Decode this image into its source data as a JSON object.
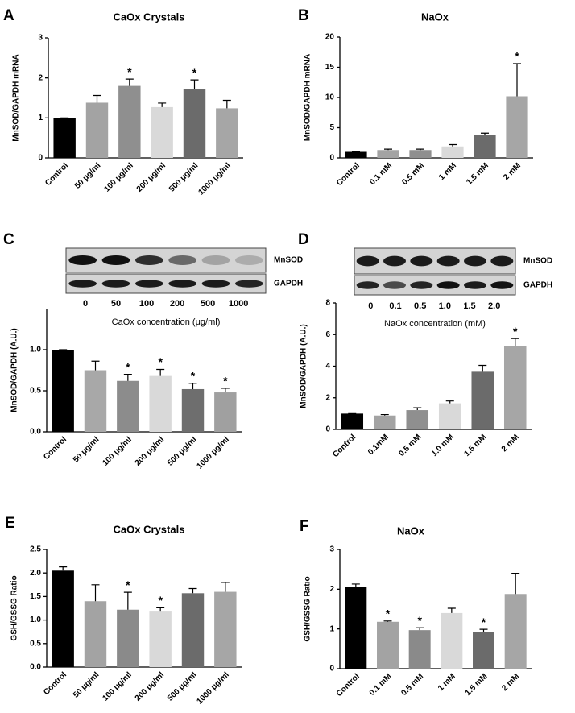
{
  "chart_data": [
    {
      "type": "bar",
      "panel": "A",
      "title": "CaOx Crystals",
      "ylabel": "MnSOD/GAPDH mRNA",
      "categories": [
        "Control",
        "50 μg/ml",
        "100 μg/ml",
        "200 μg/ml",
        "500 μg/ml",
        "1000 μg/ml"
      ],
      "values": [
        1.0,
        1.38,
        1.8,
        1.27,
        1.73,
        1.24
      ],
      "errors": [
        0,
        0.18,
        0.17,
        0.1,
        0.22,
        0.2
      ],
      "colors": [
        "#000000",
        "#a3a3a3",
        "#8f8f8f",
        "#d9d9d9",
        "#6b6b6b",
        "#a6a6a6"
      ],
      "annotations": [
        null,
        null,
        "*",
        null,
        "*",
        null
      ],
      "ylim": [
        0,
        3
      ],
      "yticks": [
        0,
        1,
        2,
        3
      ]
    },
    {
      "type": "bar",
      "panel": "B",
      "title": "NaOx",
      "ylabel": "MnSOD/GAPDH mRNA",
      "categories": [
        "Control",
        "0.1 mM",
        "0.5 mM",
        "1 mM",
        "1.5 mM",
        "2 mM"
      ],
      "values": [
        1.0,
        1.3,
        1.3,
        1.9,
        3.8,
        10.2
      ],
      "errors": [
        0,
        0.15,
        0.15,
        0.3,
        0.3,
        5.4
      ],
      "colors": [
        "#000000",
        "#a3a3a3",
        "#8f8f8f",
        "#d9d9d9",
        "#6b6b6b",
        "#a6a6a6"
      ],
      "annotations": [
        null,
        null,
        null,
        null,
        null,
        "*"
      ],
      "ylim": [
        0,
        20
      ],
      "yticks": [
        0,
        5,
        10,
        15,
        20
      ]
    },
    {
      "type": "bar",
      "panel": "C",
      "ylabel": "MnSOD/GAPDH (A.U.)",
      "blot_labels": [
        "MnSOD",
        "GAPDH"
      ],
      "lanes": [
        "0",
        "50",
        "100",
        "200",
        "500",
        "1000"
      ],
      "xlabel": "CaOx concentration (μg/ml)",
      "categories": [
        "Control",
        "50 μg/ml",
        "100 μg/ml",
        "200 μg/ml",
        "500 μg/ml",
        "1000 μg/ml"
      ],
      "values": [
        1.0,
        0.75,
        0.62,
        0.68,
        0.52,
        0.48
      ],
      "errors": [
        0,
        0.11,
        0.08,
        0.08,
        0.07,
        0.05
      ],
      "colors": [
        "#000000",
        "#a8a8a8",
        "#8c8c8c",
        "#d9d9d9",
        "#6e6e6e",
        "#a0a0a0"
      ],
      "annotations": [
        null,
        null,
        "*",
        "*",
        "*",
        "*"
      ],
      "ylim": [
        0,
        1.5
      ],
      "yticks": [
        {
          "value": 0,
          "label": "0.0"
        },
        0.5,
        {
          "value": 1,
          "label": "1.0"
        }
      ]
    },
    {
      "type": "bar",
      "panel": "D",
      "ylabel": "MnSOD/GAPDH (A.U.)",
      "blot_labels": [
        "MnSOD",
        "GAPDH"
      ],
      "lanes": [
        "0",
        "0.1",
        "0.5",
        "1.0",
        "1.5",
        "2.0"
      ],
      "xlabel": "NaOx concentration (mM)",
      "categories": [
        "Control",
        "0.1mM",
        "0.5 mM",
        "1.0 mM",
        "1.5 mM",
        "2 mM"
      ],
      "values": [
        1.0,
        0.88,
        1.22,
        1.65,
        3.65,
        5.25
      ],
      "errors": [
        0,
        0.06,
        0.15,
        0.15,
        0.4,
        0.5
      ],
      "colors": [
        "#000000",
        "#a3a3a3",
        "#8f8f8f",
        "#d9d9d9",
        "#6b6b6b",
        "#a6a6a6"
      ],
      "annotations": [
        null,
        null,
        null,
        null,
        null,
        "*"
      ],
      "ylim": [
        0,
        8
      ],
      "yticks": [
        0,
        2,
        4,
        6,
        8
      ]
    },
    {
      "type": "bar",
      "panel": "E",
      "title": "CaOx Crystals",
      "ylabel": "GSH/GSSG Ratio",
      "categories": [
        "Control",
        "50 μg/ml",
        "100 μg/ml",
        "200 μg/ml",
        "500 μg/ml",
        "1000 μg/ml"
      ],
      "values": [
        2.05,
        1.4,
        1.22,
        1.18,
        1.57,
        1.6
      ],
      "errors": [
        0.08,
        0.35,
        0.37,
        0.08,
        0.1,
        0.2
      ],
      "colors": [
        "#000000",
        "#a3a3a3",
        "#8a8a8a",
        "#d9d9d9",
        "#6b6b6b",
        "#a6a6a6"
      ],
      "annotations": [
        null,
        null,
        "*",
        "*",
        null,
        null
      ],
      "ylim": [
        0,
        2.5
      ],
      "yticks": [
        {
          "value": 0,
          "label": "0.0"
        },
        0.5,
        {
          "value": 1,
          "label": "1.0"
        },
        1.5,
        {
          "value": 2,
          "label": "2.0"
        },
        2.5
      ]
    },
    {
      "type": "bar",
      "panel": "F",
      "title": "NaOx",
      "ylabel": "GSH/GSSG Ratio",
      "categories": [
        "Control",
        "0.1 mM",
        "0.5 mM",
        "1 mM",
        "1.5 mM",
        "2 mM"
      ],
      "values": [
        2.05,
        1.18,
        0.97,
        1.4,
        0.92,
        1.88
      ],
      "errors": [
        0.08,
        0.02,
        0.06,
        0.12,
        0.07,
        0.52
      ],
      "colors": [
        "#000000",
        "#a3a3a3",
        "#8a8a8a",
        "#d9d9d9",
        "#6b6b6b",
        "#a6a6a6"
      ],
      "annotations": [
        null,
        "*",
        "*",
        null,
        "*",
        null
      ],
      "ylim": [
        0,
        3
      ],
      "yticks": [
        0,
        1,
        2,
        3
      ]
    }
  ]
}
